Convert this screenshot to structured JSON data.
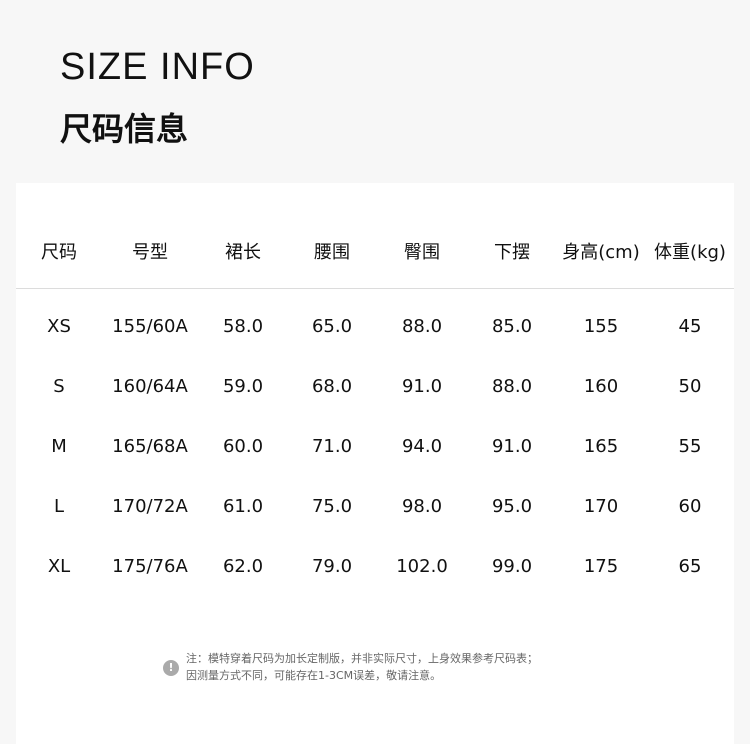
{
  "title_en": "SIZE INFO",
  "title_cn": "尺码信息",
  "table": {
    "headers": [
      "尺码",
      "号型",
      "裙长",
      "腰围",
      "臀围",
      "下摆",
      "身高(cm)",
      "体重(kg)"
    ],
    "rows": [
      [
        "XS",
        "155/60A",
        "58.0",
        "65.0",
        "88.0",
        "85.0",
        "155",
        "45"
      ],
      [
        "S",
        "160/64A",
        "59.0",
        "68.0",
        "91.0",
        "88.0",
        "160",
        "50"
      ],
      [
        "M",
        "165/68A",
        "60.0",
        "71.0",
        "94.0",
        "91.0",
        "165",
        "55"
      ],
      [
        "L",
        "170/72A",
        "61.0",
        "75.0",
        "98.0",
        "95.0",
        "170",
        "60"
      ],
      [
        "XL",
        "175/76A",
        "62.0",
        "79.0",
        "102.0",
        "99.0",
        "175",
        "65"
      ]
    ]
  },
  "note": {
    "icon": "exclamation-circle-icon",
    "line1": "注：模特穿着尺码为加长定制版，并非实际尺寸，上身效果参考尺码表；",
    "line2": "因测量方式不同，可能存在1-3CM误差，敬请注意。"
  }
}
